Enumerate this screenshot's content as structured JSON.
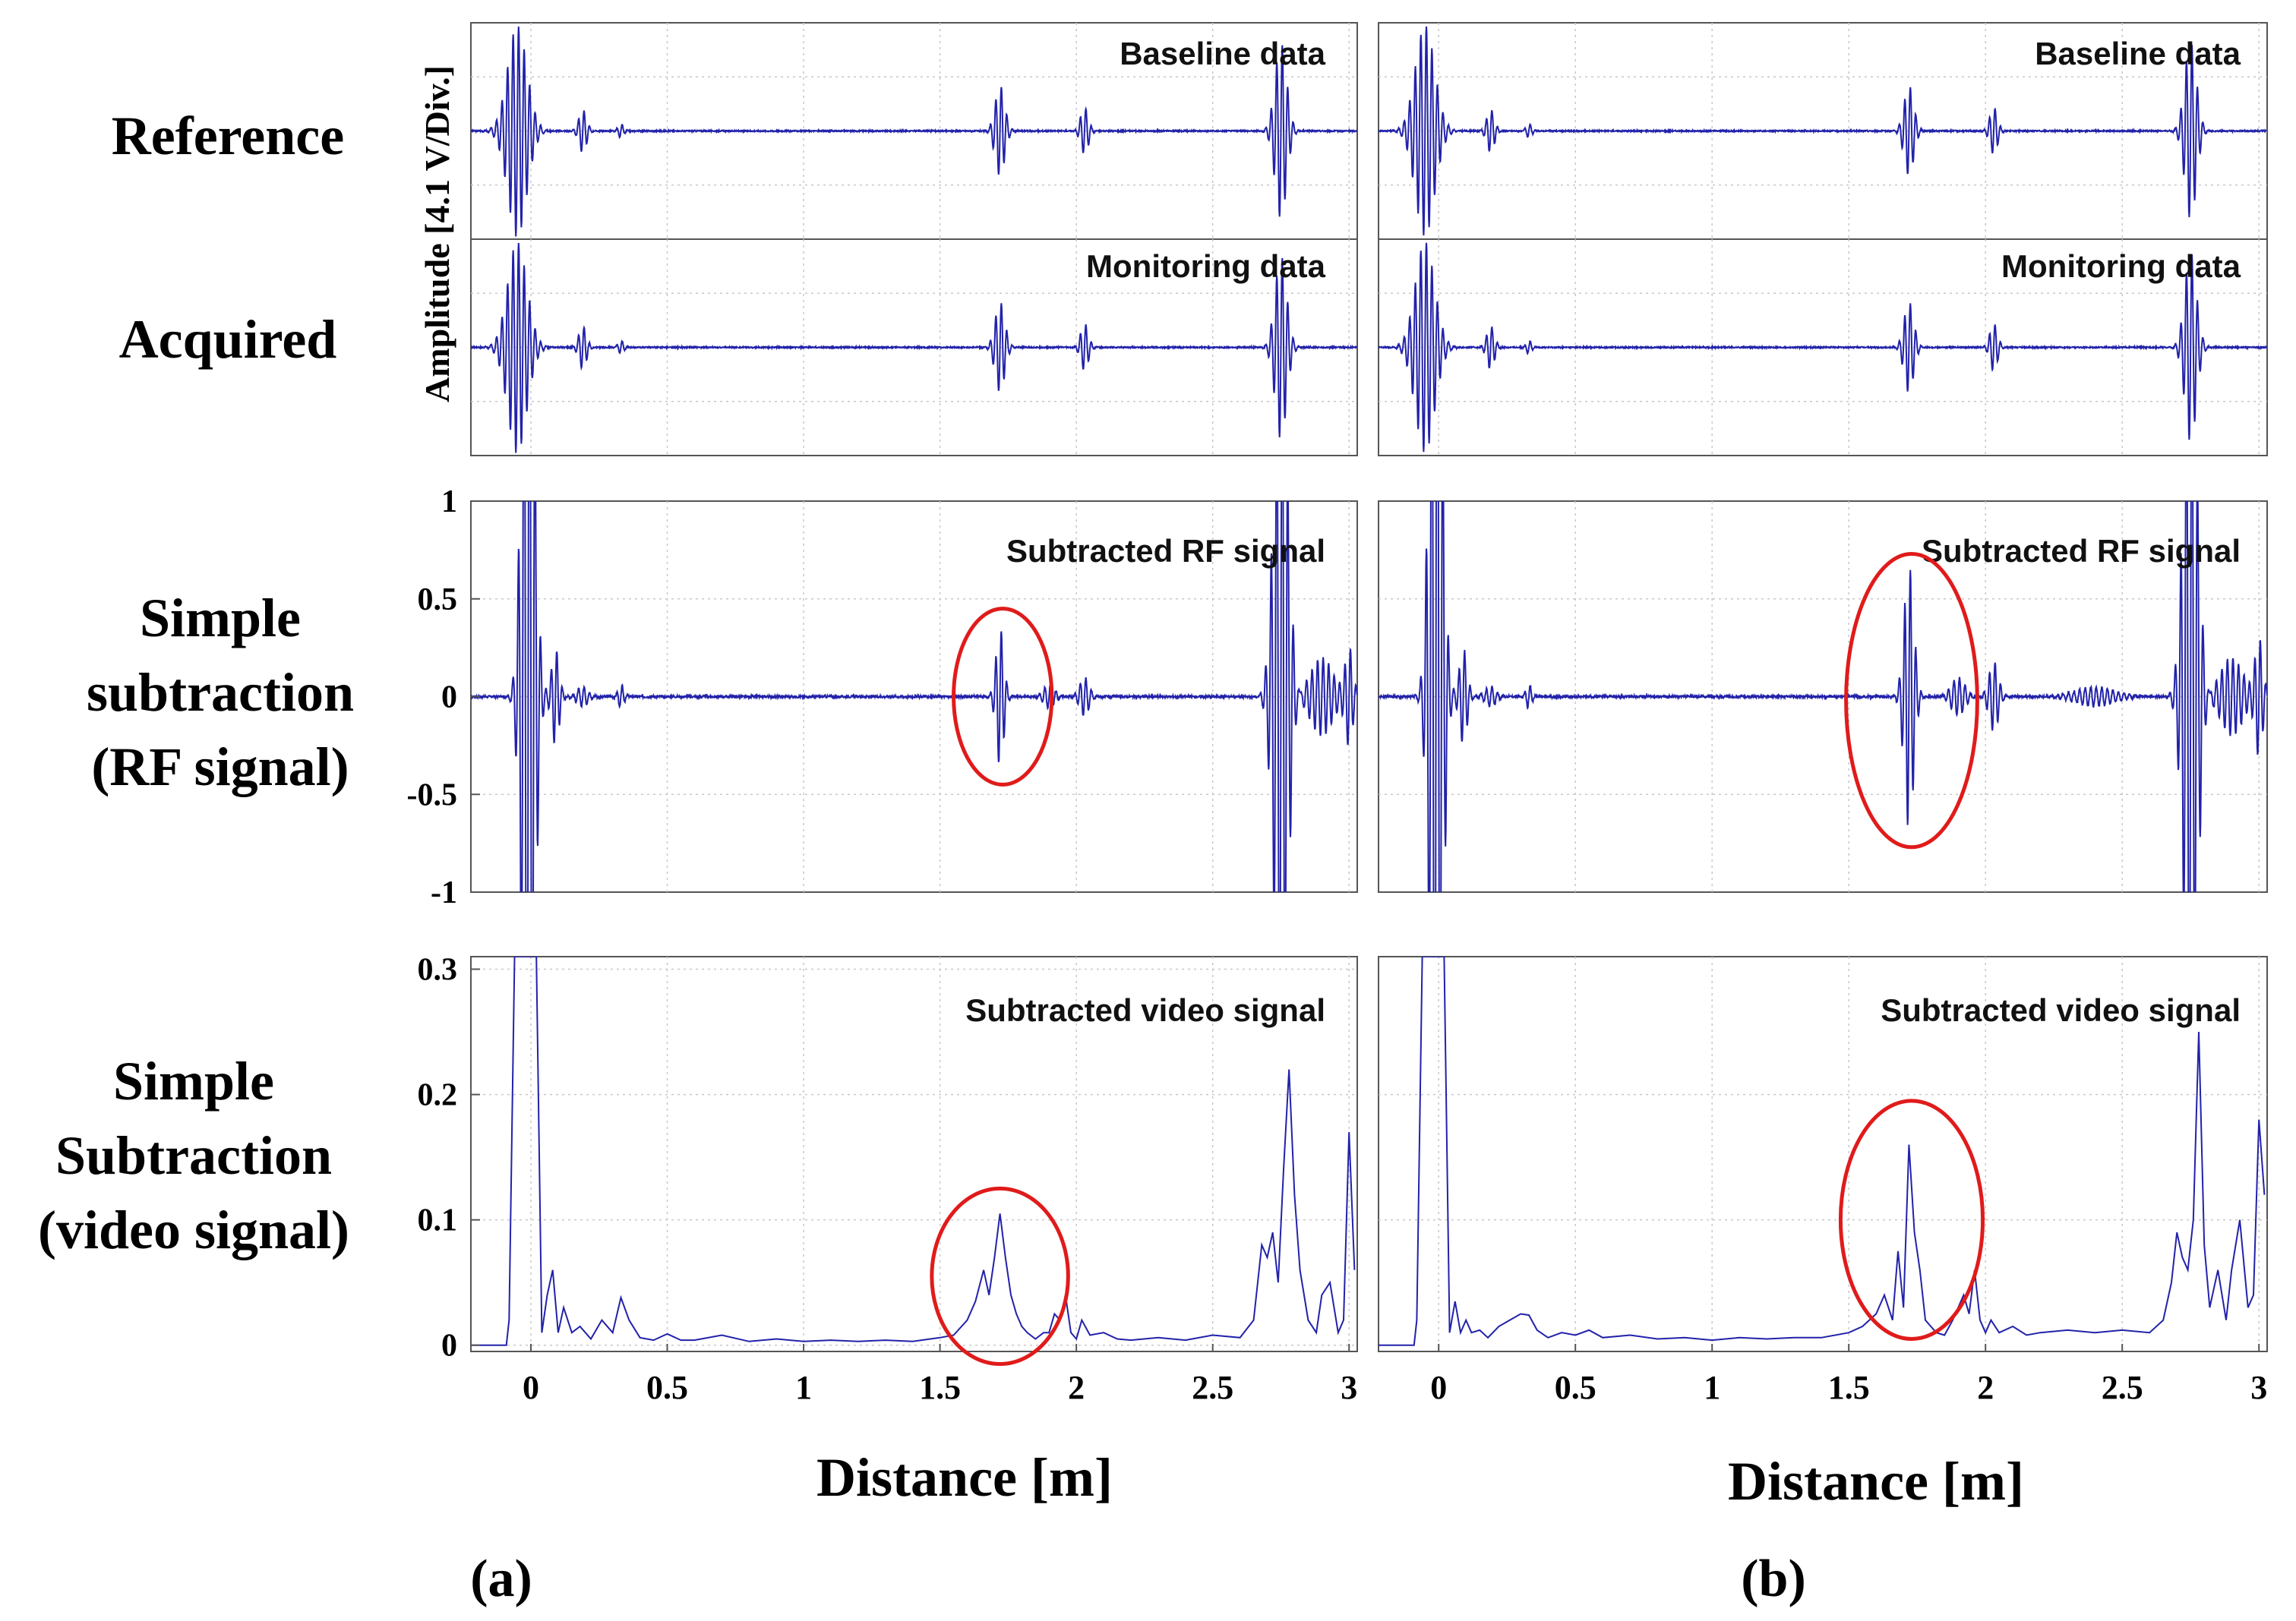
{
  "row_labels": {
    "reference": "Reference",
    "acquired": "Acquired",
    "rf": [
      "Simple",
      "subtraction",
      "(RF signal)"
    ],
    "video": [
      "Simple",
      "Subtraction",
      "(video signal)"
    ]
  },
  "y_axis_label": "Amplitude [4.1 V/Div.]",
  "x_axis_label": "Distance [m]",
  "subfigure_labels": [
    "(a)",
    "(b)"
  ],
  "colors": {
    "signal": "#2222aa",
    "highlight": "#e01b1b",
    "grid": "#c8c8c8",
    "frame": "#555555"
  },
  "chart_data": [
    {
      "type": "line",
      "panel": "a",
      "name": "Baseline data",
      "title": "Baseline data",
      "xlabel": "Distance [m]",
      "ylabel": "Amplitude [4.1 V/Div.]",
      "xlim": [
        -0.22,
        3.03
      ],
      "ylim": [
        -1,
        1
      ],
      "packets": [
        {
          "center": -0.05,
          "amp": 0.98,
          "width": 0.05
        },
        {
          "center": 0.19,
          "amp": 0.2,
          "width": 0.02
        },
        {
          "center": 0.33,
          "amp": 0.06,
          "width": 0.015
        },
        {
          "center": 1.72,
          "amp": 0.42,
          "width": 0.025
        },
        {
          "center": 2.03,
          "amp": 0.22,
          "width": 0.02
        },
        {
          "center": 2.75,
          "amp": 0.82,
          "width": 0.03
        }
      ]
    },
    {
      "type": "line",
      "panel": "a",
      "name": "Monitoring data",
      "title": "Monitoring data",
      "xlabel": "Distance [m]",
      "ylabel": "Amplitude [4.1 V/Div.]",
      "xlim": [
        -0.22,
        3.03
      ],
      "ylim": [
        -1,
        1
      ],
      "packets": [
        {
          "center": -0.05,
          "amp": 0.98,
          "width": 0.05
        },
        {
          "center": 0.19,
          "amp": 0.2,
          "width": 0.02
        },
        {
          "center": 0.33,
          "amp": 0.06,
          "width": 0.015
        },
        {
          "center": 1.72,
          "amp": 0.42,
          "width": 0.025
        },
        {
          "center": 2.03,
          "amp": 0.22,
          "width": 0.02
        },
        {
          "center": 2.75,
          "amp": 0.85,
          "width": 0.03
        }
      ]
    },
    {
      "type": "line",
      "panel": "a",
      "name": "Subtracted RF signal",
      "title": "Subtracted RF signal",
      "xlabel": "Distance [m]",
      "ylabel": "",
      "xlim": [
        -0.22,
        3.03
      ],
      "ylim": [
        -1,
        1
      ],
      "yticks": [
        1,
        0.5,
        0,
        -0.5,
        -1
      ],
      "ytick_labels": [
        "1",
        "0.5",
        "0",
        "-0.5",
        "-1"
      ],
      "packets": [
        {
          "center": -0.01,
          "amp": 3.0,
          "width": 0.03
        },
        {
          "center": 0.09,
          "amp": 0.25,
          "width": 0.02
        },
        {
          "center": 0.19,
          "amp": 0.05,
          "width": 0.03
        },
        {
          "center": 0.33,
          "amp": 0.06,
          "width": 0.015
        },
        {
          "center": 1.72,
          "amp": 0.36,
          "width": 0.02
        },
        {
          "center": 1.9,
          "amp": 0.06,
          "width": 0.03
        },
        {
          "center": 2.03,
          "amp": 0.1,
          "width": 0.025
        },
        {
          "center": 2.75,
          "amp": 2.0,
          "width": 0.035
        },
        {
          "center": 2.9,
          "amp": 0.2,
          "width": 0.06
        },
        {
          "center": 3.0,
          "amp": 0.25,
          "width": 0.02
        }
      ],
      "highlight": {
        "x": 1.73,
        "y": 0,
        "rx": 0.18,
        "ry": 0.45
      }
    },
    {
      "type": "line",
      "panel": "a",
      "name": "Subtracted video signal",
      "title": "Subtracted video signal",
      "xlabel": "Distance [m]",
      "ylabel": "",
      "xlim": [
        -0.22,
        3.03
      ],
      "ylim": [
        -0.005,
        0.31
      ],
      "xticks": [
        0,
        0.5,
        1,
        1.5,
        2,
        2.5,
        3
      ],
      "xtick_labels": [
        "0",
        "0.5",
        "1",
        "1.5",
        "2",
        "2.5",
        "3"
      ],
      "yticks": [
        0,
        0.1,
        0.2,
        0.3
      ],
      "ytick_labels": [
        "0",
        "0.1",
        "0.2",
        "0.3"
      ],
      "x": [
        -0.22,
        -0.09,
        -0.08,
        -0.06,
        -0.04,
        -0.03,
        -0.02,
        -0.01,
        0.0,
        0.02,
        0.04,
        0.06,
        0.08,
        0.1,
        0.12,
        0.15,
        0.18,
        0.22,
        0.26,
        0.3,
        0.33,
        0.36,
        0.4,
        0.45,
        0.5,
        0.55,
        0.6,
        0.7,
        0.8,
        0.9,
        1.0,
        1.1,
        1.2,
        1.3,
        1.4,
        1.5,
        1.55,
        1.6,
        1.63,
        1.66,
        1.68,
        1.7,
        1.72,
        1.74,
        1.76,
        1.78,
        1.8,
        1.82,
        1.85,
        1.88,
        1.9,
        1.92,
        1.94,
        1.96,
        1.98,
        2.0,
        2.02,
        2.05,
        2.1,
        2.15,
        2.2,
        2.3,
        2.4,
        2.5,
        2.6,
        2.65,
        2.68,
        2.7,
        2.72,
        2.74,
        2.76,
        2.78,
        2.8,
        2.82,
        2.85,
        2.88,
        2.9,
        2.93,
        2.96,
        2.98,
        3.0,
        3.02
      ],
      "y": [
        0.0,
        0.0,
        0.02,
        0.31,
        0.31,
        0.31,
        0.31,
        0.31,
        0.31,
        0.31,
        0.01,
        0.04,
        0.06,
        0.01,
        0.03,
        0.01,
        0.015,
        0.005,
        0.02,
        0.01,
        0.038,
        0.02,
        0.006,
        0.004,
        0.009,
        0.004,
        0.004,
        0.008,
        0.003,
        0.005,
        0.003,
        0.004,
        0.003,
        0.004,
        0.003,
        0.006,
        0.008,
        0.02,
        0.035,
        0.06,
        0.04,
        0.07,
        0.105,
        0.07,
        0.04,
        0.025,
        0.015,
        0.01,
        0.005,
        0.01,
        0.01,
        0.025,
        0.02,
        0.04,
        0.01,
        0.005,
        0.02,
        0.008,
        0.01,
        0.005,
        0.004,
        0.006,
        0.004,
        0.008,
        0.006,
        0.02,
        0.08,
        0.07,
        0.09,
        0.05,
        0.14,
        0.22,
        0.12,
        0.06,
        0.02,
        0.01,
        0.04,
        0.05,
        0.01,
        0.02,
        0.17,
        0.06
      ],
      "highlight": {
        "x": 1.72,
        "y": 0.055,
        "rx": 0.25,
        "ry": 0.07
      }
    },
    {
      "type": "line",
      "panel": "b",
      "name": "Baseline data",
      "title": "Baseline data",
      "xlabel": "Distance [m]",
      "ylabel": "",
      "xlim": [
        -0.22,
        3.03
      ],
      "ylim": [
        -1,
        1
      ],
      "packets": [
        {
          "center": -0.05,
          "amp": 0.98,
          "width": 0.05
        },
        {
          "center": 0.19,
          "amp": 0.2,
          "width": 0.02
        },
        {
          "center": 0.33,
          "amp": 0.06,
          "width": 0.015
        },
        {
          "center": 1.72,
          "amp": 0.42,
          "width": 0.025
        },
        {
          "center": 2.03,
          "amp": 0.22,
          "width": 0.02
        },
        {
          "center": 2.75,
          "amp": 0.82,
          "width": 0.03
        }
      ]
    },
    {
      "type": "line",
      "panel": "b",
      "name": "Monitoring data",
      "title": "Monitoring data",
      "xlabel": "Distance [m]",
      "ylabel": "",
      "xlim": [
        -0.22,
        3.03
      ],
      "ylim": [
        -1,
        1
      ],
      "packets": [
        {
          "center": -0.05,
          "amp": 0.98,
          "width": 0.05
        },
        {
          "center": 0.19,
          "amp": 0.2,
          "width": 0.02
        },
        {
          "center": 0.33,
          "amp": 0.06,
          "width": 0.015
        },
        {
          "center": 1.72,
          "amp": 0.42,
          "width": 0.025
        },
        {
          "center": 2.03,
          "amp": 0.22,
          "width": 0.02
        },
        {
          "center": 2.75,
          "amp": 0.88,
          "width": 0.03
        }
      ]
    },
    {
      "type": "line",
      "panel": "b",
      "name": "Subtracted RF signal",
      "title": "Subtracted RF signal",
      "xlabel": "Distance [m]",
      "ylabel": "",
      "xlim": [
        -0.22,
        3.03
      ],
      "ylim": [
        -1,
        1
      ],
      "packets": [
        {
          "center": -0.01,
          "amp": 3.0,
          "width": 0.03
        },
        {
          "center": 0.09,
          "amp": 0.25,
          "width": 0.02
        },
        {
          "center": 0.19,
          "amp": 0.05,
          "width": 0.03
        },
        {
          "center": 0.33,
          "amp": 0.06,
          "width": 0.015
        },
        {
          "center": 1.72,
          "amp": 0.68,
          "width": 0.025
        },
        {
          "center": 1.9,
          "amp": 0.1,
          "width": 0.035
        },
        {
          "center": 2.03,
          "amp": 0.18,
          "width": 0.025
        },
        {
          "center": 2.4,
          "amp": 0.05,
          "width": 0.1
        },
        {
          "center": 2.75,
          "amp": 2.0,
          "width": 0.035
        },
        {
          "center": 2.9,
          "amp": 0.2,
          "width": 0.06
        },
        {
          "center": 3.0,
          "amp": 0.3,
          "width": 0.02
        }
      ],
      "highlight": {
        "x": 1.73,
        "y": -0.02,
        "rx": 0.24,
        "ry": 0.75
      }
    },
    {
      "type": "line",
      "panel": "b",
      "name": "Subtracted video signal",
      "title": "Subtracted video signal",
      "xlabel": "Distance [m]",
      "ylabel": "",
      "xlim": [
        -0.22,
        3.03
      ],
      "ylim": [
        -0.005,
        0.31
      ],
      "xticks": [
        0,
        0.5,
        1,
        1.5,
        2,
        2.5,
        3
      ],
      "xtick_labels": [
        "0",
        "0.5",
        "1",
        "1.5",
        "2",
        "2.5",
        "3"
      ],
      "x": [
        -0.22,
        -0.09,
        -0.08,
        -0.06,
        -0.04,
        -0.03,
        -0.02,
        -0.01,
        0.0,
        0.02,
        0.04,
        0.06,
        0.08,
        0.1,
        0.12,
        0.15,
        0.18,
        0.22,
        0.26,
        0.3,
        0.33,
        0.36,
        0.4,
        0.45,
        0.5,
        0.55,
        0.6,
        0.7,
        0.8,
        0.9,
        1.0,
        1.1,
        1.2,
        1.3,
        1.4,
        1.5,
        1.55,
        1.6,
        1.63,
        1.66,
        1.68,
        1.7,
        1.72,
        1.74,
        1.76,
        1.78,
        1.8,
        1.82,
        1.85,
        1.88,
        1.9,
        1.92,
        1.94,
        1.96,
        1.98,
        2.0,
        2.02,
        2.05,
        2.1,
        2.15,
        2.2,
        2.3,
        2.4,
        2.5,
        2.6,
        2.65,
        2.68,
        2.7,
        2.72,
        2.74,
        2.76,
        2.78,
        2.8,
        2.82,
        2.85,
        2.88,
        2.9,
        2.93,
        2.96,
        2.98,
        3.0,
        3.02
      ],
      "y": [
        0.0,
        0.0,
        0.02,
        0.31,
        0.31,
        0.31,
        0.31,
        0.31,
        0.31,
        0.31,
        0.01,
        0.035,
        0.01,
        0.02,
        0.01,
        0.012,
        0.006,
        0.015,
        0.02,
        0.025,
        0.024,
        0.012,
        0.006,
        0.01,
        0.008,
        0.012,
        0.006,
        0.008,
        0.005,
        0.006,
        0.004,
        0.006,
        0.005,
        0.006,
        0.006,
        0.01,
        0.015,
        0.025,
        0.04,
        0.02,
        0.075,
        0.03,
        0.16,
        0.09,
        0.06,
        0.02,
        0.015,
        0.01,
        0.008,
        0.02,
        0.03,
        0.04,
        0.025,
        0.06,
        0.02,
        0.01,
        0.02,
        0.01,
        0.015,
        0.008,
        0.01,
        0.012,
        0.01,
        0.012,
        0.01,
        0.02,
        0.05,
        0.09,
        0.07,
        0.06,
        0.1,
        0.25,
        0.08,
        0.03,
        0.06,
        0.02,
        0.06,
        0.1,
        0.03,
        0.04,
        0.18,
        0.12
      ],
      "highlight": {
        "x": 1.73,
        "y": 0.1,
        "rx": 0.26,
        "ry": 0.095
      }
    }
  ]
}
